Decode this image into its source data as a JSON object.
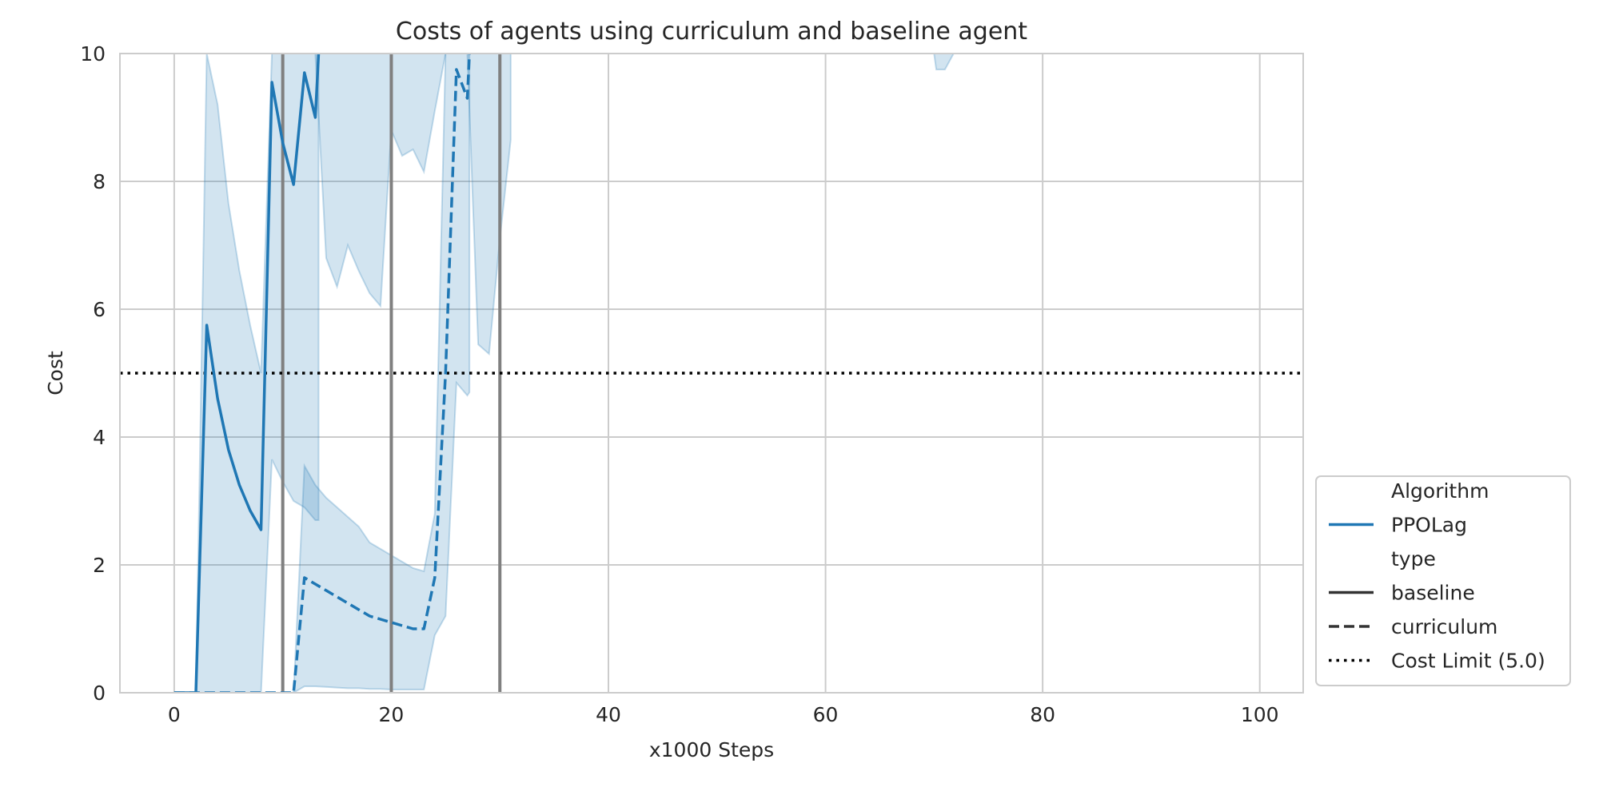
{
  "chart_data": {
    "type": "line",
    "title": "Costs of agents using curriculum and baseline agent",
    "xlabel": "x1000 Steps",
    "ylabel": "Cost",
    "xlim": [
      -5,
      104
    ],
    "ylim": [
      0,
      10
    ],
    "x_ticks": [
      0,
      20,
      40,
      60,
      80,
      100
    ],
    "y_ticks": [
      0,
      2,
      4,
      6,
      8,
      10
    ],
    "grid": true,
    "colors": {
      "series": "#1f77b4",
      "band": "#1f77b4",
      "limit": "#000000",
      "vline": "#808080",
      "grid": "#cccccc"
    },
    "legend": {
      "placement": "right-bottom, outside plot",
      "entries": [
        {
          "label": "Algorithm",
          "style": "header"
        },
        {
          "label": "PPOLag",
          "style": "solid",
          "color": "#1f77b4"
        },
        {
          "label": "type",
          "style": "header"
        },
        {
          "label": "baseline",
          "style": "solid",
          "color": "#333333"
        },
        {
          "label": "curriculum",
          "style": "dashed",
          "color": "#333333"
        },
        {
          "label": "Cost Limit (5.0)",
          "style": "dotted",
          "color": "#000000"
        }
      ]
    },
    "cost_limit": 5.0,
    "vertical_lines": [
      10,
      20,
      30
    ],
    "series": [
      {
        "name": "baseline",
        "dash": "solid",
        "x": [
          0,
          1,
          2,
          3,
          4,
          5,
          6,
          7,
          8,
          9,
          10,
          11,
          12,
          13,
          13.3
        ],
        "y": [
          0,
          0,
          0,
          5.75,
          4.6,
          3.8,
          3.25,
          2.85,
          2.55,
          9.55,
          8.6,
          7.95,
          9.7,
          9.0,
          10
        ],
        "band_lower": [
          0,
          0,
          0,
          0,
          0,
          0,
          0,
          0,
          0,
          3.65,
          3.3,
          3.0,
          2.9,
          2.7,
          2.7
        ],
        "band_upper": [
          0,
          0,
          0,
          10,
          9.2,
          7.65,
          6.6,
          5.75,
          5.0,
          10,
          10,
          10,
          10,
          10,
          10
        ]
      },
      {
        "name": "curriculum",
        "dash": "dashed",
        "x": [
          0,
          1,
          2,
          3,
          4,
          5,
          6,
          7,
          8,
          9,
          10,
          11,
          12,
          13,
          14,
          15,
          16,
          17,
          18,
          19,
          20,
          21,
          22,
          23,
          24,
          25,
          26,
          27,
          27.2
        ],
        "y": [
          0,
          0,
          0,
          0,
          0,
          0,
          0,
          0,
          0,
          0,
          0,
          0,
          1.8,
          1.7,
          1.6,
          1.5,
          1.4,
          1.3,
          1.2,
          1.15,
          1.1,
          1.05,
          1.0,
          1.0,
          1.8,
          5.0,
          9.75,
          9.3,
          10
        ],
        "band_lower": [
          0,
          0,
          0,
          0,
          0,
          0,
          0,
          0,
          0,
          0,
          0,
          0,
          0.1,
          0.1,
          0.09,
          0.08,
          0.07,
          0.07,
          0.06,
          0.06,
          0.05,
          0.05,
          0.05,
          0.05,
          0.9,
          1.2,
          4.85,
          4.65,
          4.7
        ],
        "band_upper": [
          0,
          0,
          0,
          0,
          0,
          0,
          0,
          0,
          0,
          0,
          0,
          0,
          3.55,
          3.25,
          3.05,
          2.9,
          2.75,
          2.6,
          2.35,
          2.25,
          2.15,
          2.05,
          1.95,
          1.9,
          2.8,
          10,
          10,
          10,
          10
        ]
      }
    ],
    "extra_bands": [
      {
        "note": "baseline continuation band",
        "x": [
          13,
          14,
          15,
          16,
          17,
          18,
          19,
          20,
          21,
          22,
          23,
          24,
          25,
          26,
          27,
          28,
          29,
          30,
          31
        ],
        "lower": [
          10,
          6.8,
          6.35,
          7.0,
          6.6,
          6.25,
          6.05,
          8.8,
          8.4,
          8.5,
          8.15,
          9.1,
          10,
          10,
          10,
          5.45,
          5.3,
          7.1,
          8.65
        ],
        "upper": [
          10,
          10,
          10,
          10,
          10,
          10,
          10,
          10,
          10,
          10,
          10,
          10,
          10,
          10,
          10,
          10,
          10,
          10,
          10
        ]
      },
      {
        "note": "small band spike",
        "x": [
          70,
          70.2,
          71,
          71.8
        ],
        "lower": [
          10,
          9.75,
          9.75,
          10
        ],
        "upper": [
          10,
          10,
          10,
          10
        ]
      }
    ]
  }
}
